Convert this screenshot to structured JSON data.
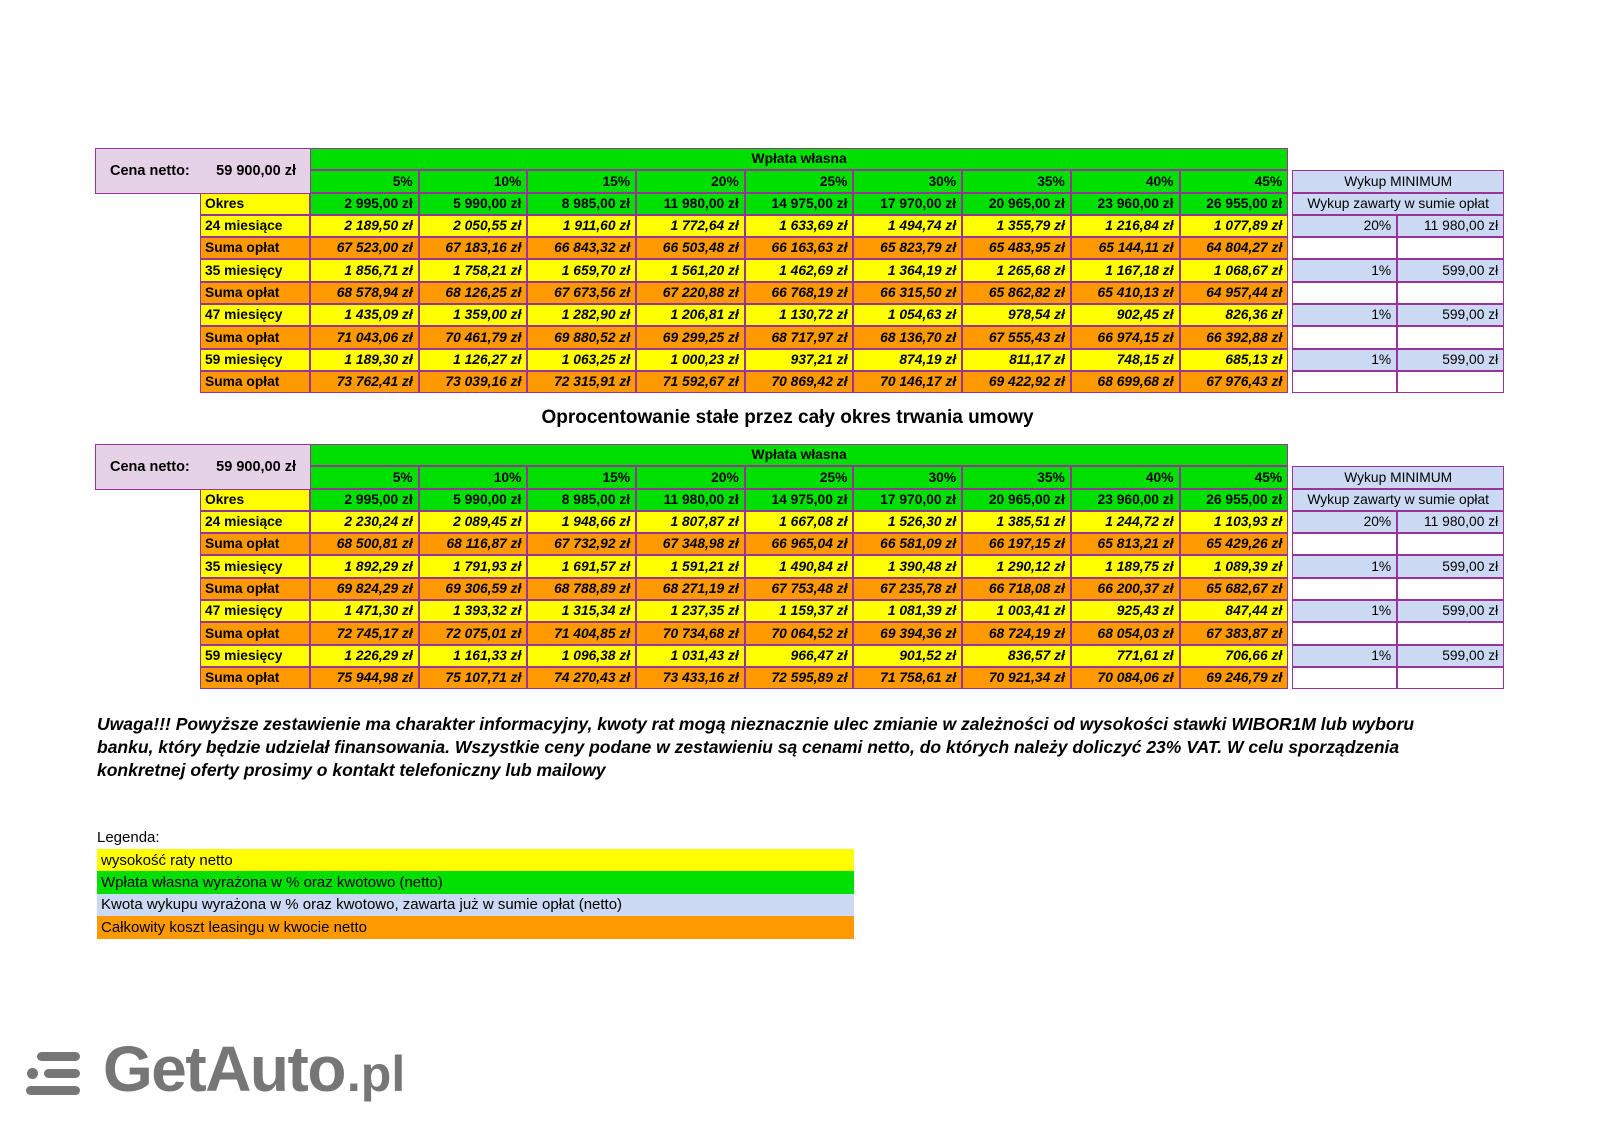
{
  "title": "Oprocentowanie stałe przez cały okres trwania umowy",
  "note": "Uwaga!!! Powyższe zestawienie ma charakter informacyjny, kwoty rat mogą nieznacznie ulec zmianie w zależności od wysokości stawki WIBOR1M lub wyboru banku, który będzie udzielał finansowania. Wszystkie ceny podane w zestawieniu są cenami netto, do których należy doliczyć 23% VAT. W celu sporządzenia konkretnej oferty prosimy o kontakt telefoniczny lub mailowy",
  "legend": {
    "label": "Legenda:",
    "items": [
      {
        "color": "#ffff00",
        "text": "wysokość raty netto"
      },
      {
        "color": "#00e000",
        "text": "Wpłata własna wyrażona w % oraz kwotowo (netto)"
      },
      {
        "color": "#ccd9f3",
        "text": "Kwota wykupu wyrażona w % oraz kwotowo, zawarta już w sumie opłat (netto)"
      },
      {
        "color": "#ff9900",
        "text": "Całkowity koszt leasingu w kwocie netto"
      }
    ]
  },
  "logo": {
    "text": "GetAuto",
    "suffix": ".pl"
  },
  "colors": {
    "green": "#00e000",
    "yellow": "#ffff00",
    "orange": "#ff9900",
    "light_blue": "#ccd9f3",
    "pink": "#e6d2e6",
    "border": "#993399",
    "logo_gray": "#767676"
  },
  "tables": [
    {
      "cena_netto_label": "Cena netto:",
      "cena_netto_value": "59 900,00 zł",
      "wplata_wlasna_label": "Wpłata własna",
      "percent_headers": [
        "5%",
        "10%",
        "15%",
        "20%",
        "25%",
        "30%",
        "35%",
        "40%",
        "45%"
      ],
      "wykup_header": "Wykup MINIMUM",
      "wykup_subheader": "Wykup zawarty w sumie opłat",
      "okres_label": "Okres",
      "okres_values": [
        "2 995,00 zł",
        "5 990,00 zł",
        "8 985,00 zł",
        "11 980,00 zł",
        "14 975,00 zł",
        "17 970,00 zł",
        "20 965,00 zł",
        "23 960,00 zł",
        "26 955,00 zł"
      ],
      "rows": [
        {
          "label": "24 miesiące",
          "type": "rate",
          "values": [
            "2 189,50 zł",
            "2 050,55 zł",
            "1 911,60 zł",
            "1 772,64 zł",
            "1 633,69 zł",
            "1 494,74 zł",
            "1 355,79 zł",
            "1 216,84 zł",
            "1 077,89 zł"
          ],
          "wykup_pct": "20%",
          "wykup_amount": "11 980,00 zł"
        },
        {
          "label": "Suma opłat",
          "type": "sum",
          "values": [
            "67 523,00 zł",
            "67 183,16 zł",
            "66 843,32 zł",
            "66 503,48 zł",
            "66 163,63 zł",
            "65 823,79 zł",
            "65 483,95 zł",
            "65 144,11 zł",
            "64 804,27 zł"
          ],
          "wykup_pct": "",
          "wykup_amount": ""
        },
        {
          "label": "35 miesięcy",
          "type": "rate",
          "values": [
            "1 856,71 zł",
            "1 758,21 zł",
            "1 659,70 zł",
            "1 561,20 zł",
            "1 462,69 zł",
            "1 364,19 zł",
            "1 265,68 zł",
            "1 167,18 zł",
            "1 068,67 zł"
          ],
          "wykup_pct": "1%",
          "wykup_amount": "599,00 zł"
        },
        {
          "label": "Suma opłat",
          "type": "sum",
          "values": [
            "68 578,94 zł",
            "68 126,25 zł",
            "67 673,56 zł",
            "67 220,88 zł",
            "66 768,19 zł",
            "66 315,50 zł",
            "65 862,82 zł",
            "65 410,13 zł",
            "64 957,44 zł"
          ],
          "wykup_pct": "",
          "wykup_amount": ""
        },
        {
          "label": "47 miesięcy",
          "type": "rate",
          "values": [
            "1 435,09 zł",
            "1 359,00 zł",
            "1 282,90 zł",
            "1 206,81 zł",
            "1 130,72 zł",
            "1 054,63 zł",
            "978,54 zł",
            "902,45 zł",
            "826,36 zł"
          ],
          "wykup_pct": "1%",
          "wykup_amount": "599,00 zł"
        },
        {
          "label": "Suma opłat",
          "type": "sum",
          "values": [
            "71 043,06 zł",
            "70 461,79 zł",
            "69 880,52 zł",
            "69 299,25 zł",
            "68 717,97 zł",
            "68 136,70 zł",
            "67 555,43 zł",
            "66 974,15 zł",
            "66 392,88 zł"
          ],
          "wykup_pct": "",
          "wykup_amount": ""
        },
        {
          "label": "59 miesięcy",
          "type": "rate",
          "values": [
            "1 189,30 zł",
            "1 126,27 zł",
            "1 063,25 zł",
            "1 000,23 zł",
            "937,21 zł",
            "874,19 zł",
            "811,17 zł",
            "748,15 zł",
            "685,13 zł"
          ],
          "wykup_pct": "1%",
          "wykup_amount": "599,00 zł"
        },
        {
          "label": "Suma opłat",
          "type": "sum",
          "values": [
            "73 762,41 zł",
            "73 039,16 zł",
            "72 315,91 zł",
            "71 592,67 zł",
            "70 869,42 zł",
            "70 146,17 zł",
            "69 422,92 zł",
            "68 699,68 zł",
            "67 976,43 zł"
          ],
          "wykup_pct": "",
          "wykup_amount": ""
        }
      ]
    },
    {
      "cena_netto_label": "Cena netto:",
      "cena_netto_value": "59 900,00 zł",
      "wplata_wlasna_label": "Wpłata własna",
      "percent_headers": [
        "5%",
        "10%",
        "15%",
        "20%",
        "25%",
        "30%",
        "35%",
        "40%",
        "45%"
      ],
      "wykup_header": "Wykup MINIMUM",
      "wykup_subheader": "Wykup zawarty w sumie opłat",
      "okres_label": "Okres",
      "okres_values": [
        "2 995,00 zł",
        "5 990,00 zł",
        "8 985,00 zł",
        "11 980,00 zł",
        "14 975,00 zł",
        "17 970,00 zł",
        "20 965,00 zł",
        "23 960,00 zł",
        "26 955,00 zł"
      ],
      "rows": [
        {
          "label": "24 miesiące",
          "type": "rate",
          "values": [
            "2 230,24 zł",
            "2 089,45 zł",
            "1 948,66 zł",
            "1 807,87 zł",
            "1 667,08 zł",
            "1 526,30 zł",
            "1 385,51 zł",
            "1 244,72 zł",
            "1 103,93 zł"
          ],
          "wykup_pct": "20%",
          "wykup_amount": "11 980,00 zł"
        },
        {
          "label": "Suma opłat",
          "type": "sum",
          "values": [
            "68 500,81 zł",
            "68 116,87 zł",
            "67 732,92 zł",
            "67 348,98 zł",
            "66 965,04 zł",
            "66 581,09 zł",
            "66 197,15 zł",
            "65 813,21 zł",
            "65 429,26 zł"
          ],
          "wykup_pct": "",
          "wykup_amount": ""
        },
        {
          "label": "35 miesięcy",
          "type": "rate",
          "values": [
            "1 892,29 zł",
            "1 791,93 zł",
            "1 691,57 zł",
            "1 591,21 zł",
            "1 490,84 zł",
            "1 390,48 zł",
            "1 290,12 zł",
            "1 189,75 zł",
            "1 089,39 zł"
          ],
          "wykup_pct": "1%",
          "wykup_amount": "599,00 zł"
        },
        {
          "label": "Suma opłat",
          "type": "sum",
          "values": [
            "69 824,29 zł",
            "69 306,59 zł",
            "68 788,89 zł",
            "68 271,19 zł",
            "67 753,48 zł",
            "67 235,78 zł",
            "66 718,08 zł",
            "66 200,37 zł",
            "65 682,67 zł"
          ],
          "wykup_pct": "",
          "wykup_amount": ""
        },
        {
          "label": "47 miesięcy",
          "type": "rate",
          "values": [
            "1 471,30 zł",
            "1 393,32 zł",
            "1 315,34 zł",
            "1 237,35 zł",
            "1 159,37 zł",
            "1 081,39 zł",
            "1 003,41 zł",
            "925,43 zł",
            "847,44 zł"
          ],
          "wykup_pct": "1%",
          "wykup_amount": "599,00 zł"
        },
        {
          "label": "Suma opłat",
          "type": "sum",
          "values": [
            "72 745,17 zł",
            "72 075,01 zł",
            "71 404,85 zł",
            "70 734,68 zł",
            "70 064,52 zł",
            "69 394,36 zł",
            "68 724,19 zł",
            "68 054,03 zł",
            "67 383,87 zł"
          ],
          "wykup_pct": "",
          "wykup_amount": ""
        },
        {
          "label": "59 miesięcy",
          "type": "rate",
          "values": [
            "1 226,29 zł",
            "1 161,33 zł",
            "1 096,38 zł",
            "1 031,43 zł",
            "966,47 zł",
            "901,52 zł",
            "836,57 zł",
            "771,61 zł",
            "706,66 zł"
          ],
          "wykup_pct": "1%",
          "wykup_amount": "599,00 zł"
        },
        {
          "label": "Suma opłat",
          "type": "sum",
          "values": [
            "75 944,98 zł",
            "75 107,71 zł",
            "74 270,43 zł",
            "73 433,16 zł",
            "72 595,89 zł",
            "71 758,61 zł",
            "70 921,34 zł",
            "70 084,06 zł",
            "69 246,79 zł"
          ],
          "wykup_pct": "",
          "wykup_amount": ""
        }
      ]
    }
  ]
}
